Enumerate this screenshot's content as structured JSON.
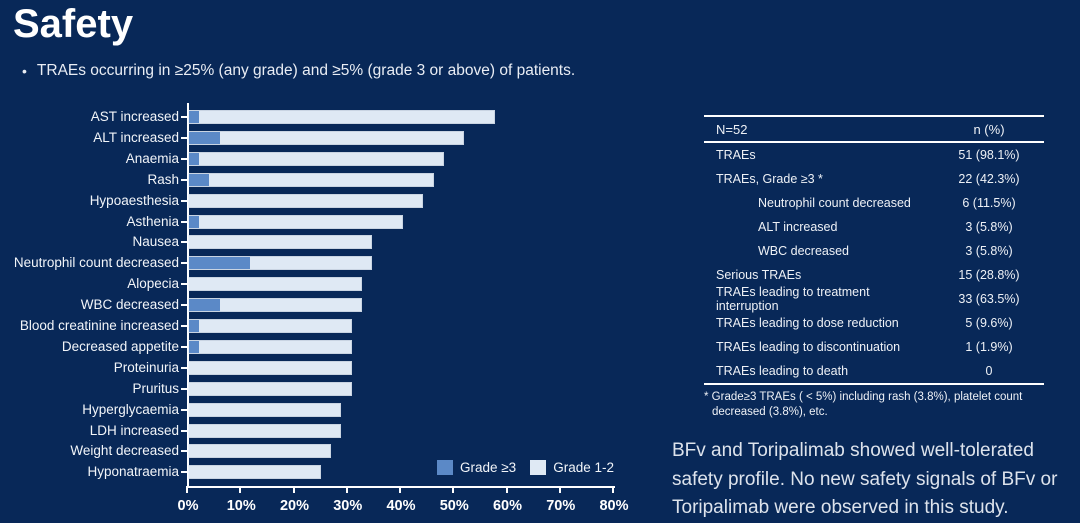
{
  "slide": {
    "title": "Safety",
    "bullet_marker": "•",
    "bullet": "TRAEs occurring in ≥25% (any grade) and ≥5% (grade 3 or above) of patients.",
    "conclusion_lines": [
      "BFv and Toripalimab showed well-tolerated",
      "safety profile. No new safety signals of BFv or",
      "Toripalimab were observed in this study."
    ]
  },
  "colors": {
    "background": "#082858",
    "grade3_bar": "#5b89c7",
    "grade12_bar": "#dfe9f4",
    "axis": "#ffffff"
  },
  "chart_data": {
    "type": "bar",
    "orientation": "horizontal",
    "stacked": true,
    "title": "",
    "xlabel": "",
    "ylabel": "",
    "xlim": [
      0,
      80
    ],
    "x_tick_labels": [
      "0%",
      "10%",
      "20%",
      "30%",
      "40%",
      "50%",
      "60%",
      "70%",
      "80%"
    ],
    "grid": false,
    "legend_position": "lower right",
    "categories": [
      "AST increased",
      "ALT increased",
      "Anaemia",
      "Rash",
      "Hypoaesthesia",
      "Asthenia",
      "Nausea",
      "Neutrophil count decreased",
      "Alopecia",
      "WBC decreased",
      "Blood creatinine increased",
      "Decreased appetite",
      "Proteinuria",
      "Pruritus",
      "Hyperglycaemia",
      "LDH increased",
      "Weight decreased",
      "Hyponatraemia"
    ],
    "series": [
      {
        "name": "Grade ≥3",
        "color": "#5b89c7",
        "values": [
          1.9,
          5.8,
          1.9,
          3.8,
          0,
          1.9,
          0,
          11.5,
          0,
          5.8,
          1.9,
          1.9,
          0,
          0,
          0,
          0,
          0,
          0
        ]
      },
      {
        "name": "Grade 1-2",
        "color": "#dfe9f4",
        "values": [
          55.8,
          46.1,
          46.2,
          42.4,
          44.2,
          38.5,
          34.6,
          23.1,
          32.7,
          26.9,
          28.9,
          28.9,
          30.8,
          30.8,
          28.8,
          28.8,
          26.9,
          25.0
        ]
      }
    ],
    "totals_any_grade_pct": [
      57.7,
      51.9,
      48.1,
      46.2,
      44.2,
      40.4,
      34.6,
      34.6,
      32.7,
      32.7,
      30.8,
      30.8,
      30.8,
      30.8,
      28.8,
      28.8,
      26.9,
      25.0
    ]
  },
  "table": {
    "header": {
      "col1": "N=52",
      "col2": "n (%)"
    },
    "rows": [
      {
        "label": "TRAEs",
        "value": "51 (98.1%)",
        "indent": false
      },
      {
        "label": "TRAEs, Grade ≥3 *",
        "value": "22 (42.3%)",
        "indent": false
      },
      {
        "label": "Neutrophil count decreased",
        "value": "6 (11.5%)",
        "indent": true
      },
      {
        "label": "ALT increased",
        "value": "3 (5.8%)",
        "indent": true
      },
      {
        "label": "WBC decreased",
        "value": "3 (5.8%)",
        "indent": true
      },
      {
        "label": "Serious TRAEs",
        "value": "15 (28.8%)",
        "indent": false
      },
      {
        "label": "TRAEs leading to treatment interruption",
        "value": "33 (63.5%)",
        "indent": false
      },
      {
        "label": "TRAEs leading to dose reduction",
        "value": "5 (9.6%)",
        "indent": false
      },
      {
        "label": "TRAEs leading to discontinuation",
        "value": "1 (1.9%)",
        "indent": false
      },
      {
        "label": "TRAEs leading to death",
        "value": "0",
        "indent": false
      }
    ],
    "footnote_lines": [
      "* Grade≥3 TRAEs ( < 5%) including rash (3.8%), platelet count",
      "decreased (3.8%), etc."
    ]
  }
}
